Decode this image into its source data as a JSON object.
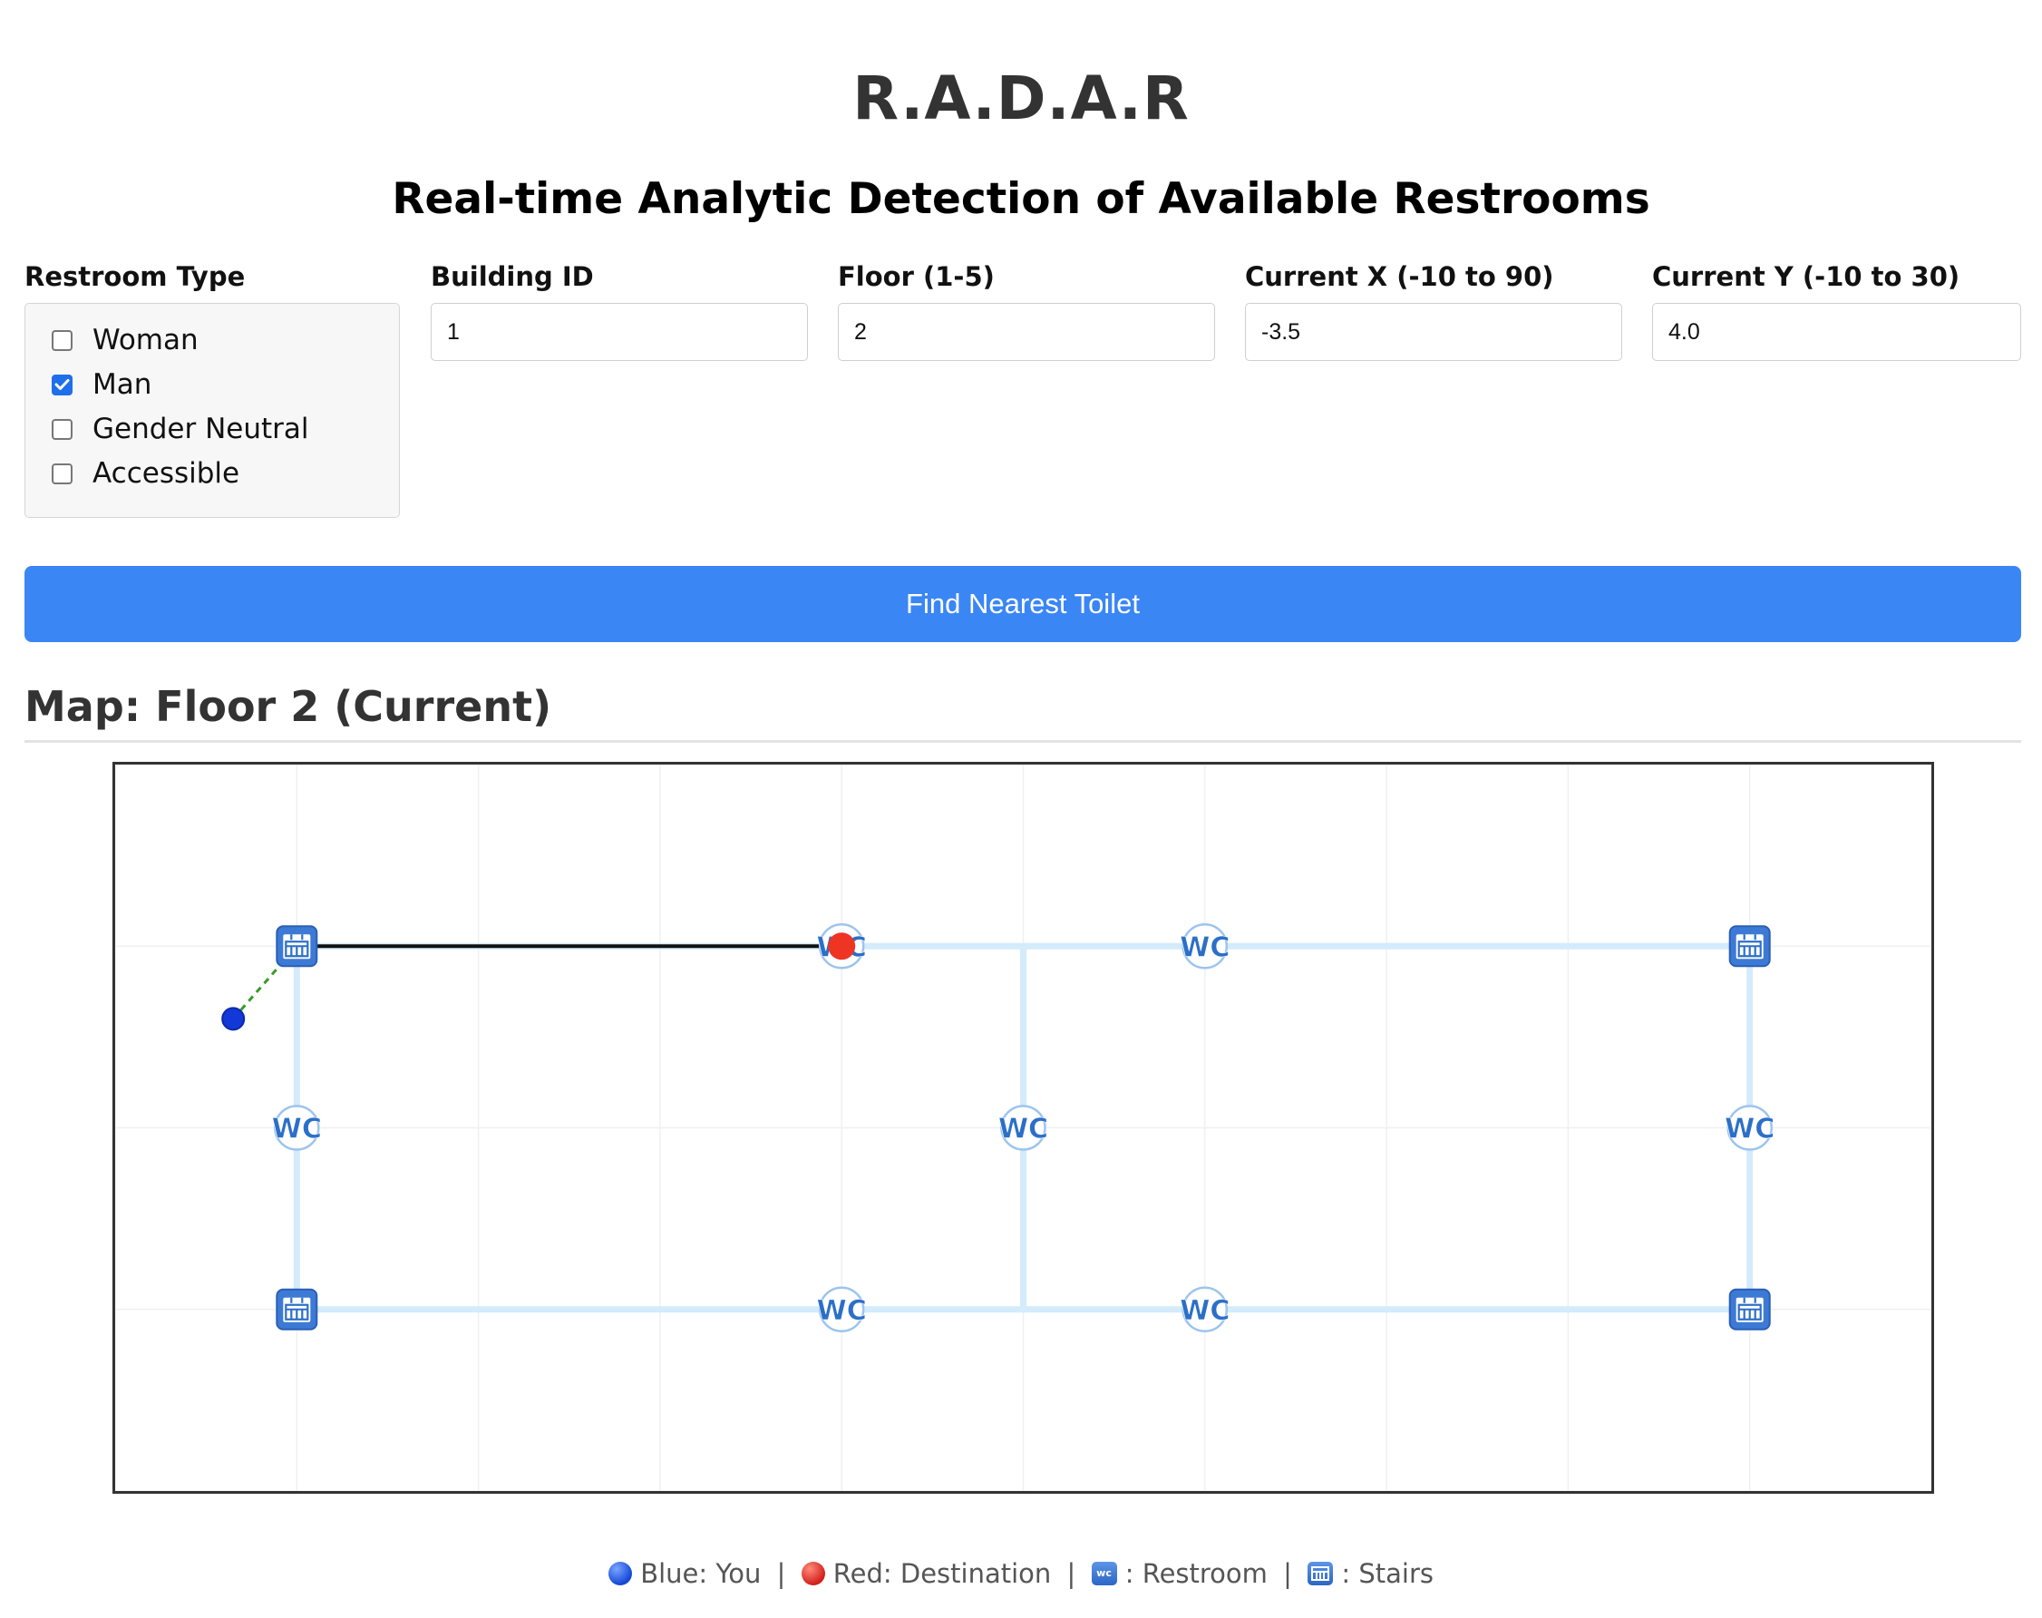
{
  "header": {
    "title": "R.A.D.A.R",
    "subtitle": "Real-time Analytic Detection of Available Restrooms"
  },
  "form": {
    "restroom_type": {
      "label": "Restroom Type",
      "options": [
        {
          "label": "Woman",
          "checked": false
        },
        {
          "label": "Man",
          "checked": true
        },
        {
          "label": "Gender Neutral",
          "checked": false
        },
        {
          "label": "Accessible",
          "checked": false
        }
      ]
    },
    "building_id": {
      "label": "Building ID",
      "value": "1"
    },
    "floor": {
      "label": "Floor (1-5)",
      "value": "2"
    },
    "current_x": {
      "label": "Current X (-10 to 90)",
      "value": "-3.5"
    },
    "current_y": {
      "label": "Current Y (-10 to 30)",
      "value": "4.0"
    },
    "submit_label": "Find Nearest Toilet"
  },
  "map": {
    "heading": "Map: Floor 2 (Current)",
    "floor": 2,
    "x_range": [
      -10,
      90
    ],
    "y_range": [
      -10,
      30
    ],
    "gridlines": true,
    "corridors": [
      [
        [
          0,
          0
        ],
        [
          80,
          0
        ]
      ],
      [
        [
          0,
          20
        ],
        [
          80,
          20
        ]
      ],
      [
        [
          0,
          0
        ],
        [
          0,
          20
        ]
      ],
      [
        [
          80,
          0
        ],
        [
          80,
          20
        ]
      ],
      [
        [
          40,
          0
        ],
        [
          40,
          20
        ]
      ]
    ],
    "restrooms": [
      [
        30,
        0
      ],
      [
        50,
        0
      ],
      [
        0,
        10
      ],
      [
        40,
        10
      ],
      [
        80,
        10
      ],
      [
        30,
        20
      ],
      [
        50,
        20
      ]
    ],
    "stairs": [
      [
        0,
        0
      ],
      [
        80,
        0
      ],
      [
        0,
        20
      ],
      [
        80,
        20
      ]
    ],
    "user": [
      -3.5,
      4.0
    ],
    "destination": [
      30,
      0
    ],
    "route_to_stairs": [
      [
        -3.5,
        4.0
      ],
      [
        0,
        0
      ]
    ],
    "route_path": [
      [
        0,
        0
      ],
      [
        30,
        0
      ]
    ],
    "colors": {
      "corridor": "#d3ebfb",
      "icon": "#2c6fc8",
      "user": "#1238d8",
      "destination": "#ee3524",
      "route": "#111111",
      "approach": "#3a9a2a"
    }
  },
  "legend": {
    "you": "Blue: You",
    "destination": "Red: Destination",
    "restroom": ": Restroom",
    "stairs": ": Stairs",
    "separator": "|"
  }
}
